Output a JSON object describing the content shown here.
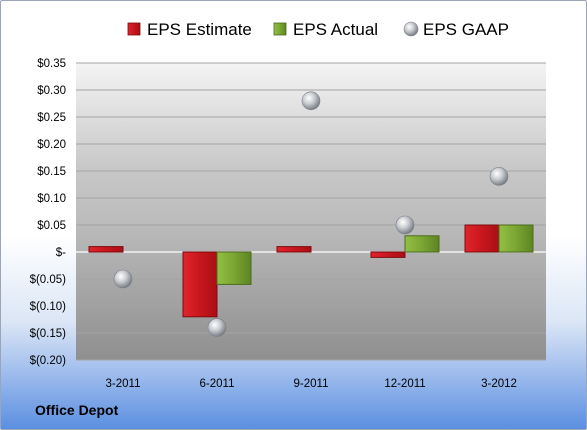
{
  "company": "Office Depot",
  "chart_data": {
    "type": "bar",
    "categories": [
      "3-2011",
      "6-2011",
      "9-2011",
      "12-2011",
      "3-2012"
    ],
    "ylim": [
      -0.2,
      0.35
    ],
    "ytick_values": [
      0.35,
      0.3,
      0.25,
      0.2,
      0.15,
      0.1,
      0.05,
      0,
      -0.05,
      -0.1,
      -0.15,
      -0.2
    ],
    "ytick_labels": [
      "$0.35",
      "$0.30",
      "$0.25",
      "$0.20",
      "$0.15",
      "$0.10",
      "$0.05",
      "$-",
      "$(0.05)",
      "$(0.10)",
      "$(0.15)",
      "$(0.20)"
    ],
    "grid": true,
    "legend_position": "top",
    "series": [
      {
        "name": "EPS Estimate",
        "kind": "bar",
        "color": "#c8161d",
        "values": [
          0.01,
          -0.12,
          0.01,
          -0.01,
          0.05
        ]
      },
      {
        "name": "EPS Actual",
        "kind": "bar",
        "color": "#78a22f",
        "values": [
          null,
          -0.06,
          null,
          0.03,
          0.05
        ]
      },
      {
        "name": "EPS GAAP",
        "kind": "marker",
        "color": "#b9bcc2",
        "values": [
          -0.05,
          -0.14,
          0.28,
          0.05,
          0.14
        ]
      }
    ]
  }
}
